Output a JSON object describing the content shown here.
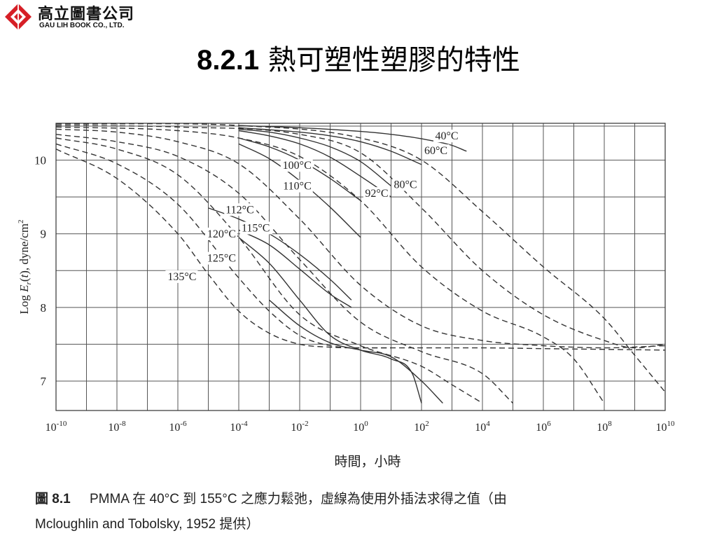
{
  "logo": {
    "name_cn": "高立圖書公司",
    "name_en": "GAU LIH BOOK CO., LTD.",
    "brand_color": "#d61f26"
  },
  "title": {
    "number": "8.2.1",
    "text": "熱可塑性塑膠的特性"
  },
  "chart_data": {
    "type": "line",
    "xlabel": "時間，小時",
    "ylabel": "Log E_r(t), dyne/cm^2",
    "xscale": "log10",
    "xlim": [
      1e-10,
      10000000000.0
    ],
    "ylim": [
      6.6,
      10.5
    ],
    "x_ticks": [
      "-10",
      "-8",
      "-6",
      "-4",
      "-2",
      "0",
      "2",
      "4",
      "6",
      "8",
      "10"
    ],
    "y_ticks": [
      "7",
      "8",
      "9",
      "10"
    ],
    "grid": true,
    "legend": "inline-labels",
    "series": [
      {
        "name": "40°C",
        "style": "solid",
        "x": [
          0.0001,
          0.01,
          1.0,
          10.0,
          100.0,
          1000.0,
          3000.0
        ],
        "y": [
          10.47,
          10.44,
          10.39,
          10.35,
          10.29,
          10.2,
          10.12
        ]
      },
      {
        "name": "60°C",
        "style": "solid",
        "x": [
          0.0001,
          0.01,
          0.1,
          1.0,
          10.0,
          100.0
        ],
        "y": [
          10.44,
          10.38,
          10.33,
          10.25,
          10.12,
          9.94
        ]
      },
      {
        "name": "80°C",
        "style": "solid",
        "x": [
          0.0001,
          0.001,
          0.01,
          0.1,
          1.0,
          10.0
        ],
        "y": [
          10.42,
          10.38,
          10.3,
          10.18,
          9.98,
          9.65
        ]
      },
      {
        "name": "92°C",
        "style": "solid",
        "x": [
          0.0001,
          0.001,
          0.01,
          0.1,
          1.0,
          10.0
        ],
        "y": [
          10.4,
          10.33,
          10.22,
          10.04,
          9.78,
          9.5
        ]
      },
      {
        "name": "100°C",
        "style": "solid",
        "x": [
          0.0001,
          0.001,
          0.01,
          0.1,
          1.0
        ],
        "y": [
          10.3,
          10.18,
          10.0,
          9.75,
          9.45
        ]
      },
      {
        "name": "110°C",
        "style": "solid",
        "x": [
          0.0001,
          0.001,
          0.01,
          0.1,
          1.0
        ],
        "y": [
          10.22,
          10.02,
          9.72,
          9.36,
          8.95
        ]
      },
      {
        "name": "112°C",
        "style": "solid",
        "x": [
          1e-05,
          0.0001,
          0.001,
          0.01,
          0.1,
          0.5
        ],
        "y": [
          9.35,
          9.2,
          9.0,
          8.72,
          8.38,
          8.1
        ]
      },
      {
        "name": "115°C",
        "style": "solid",
        "x": [
          0.0001,
          0.001,
          0.01,
          0.1,
          0.5
        ],
        "y": [
          9.05,
          8.85,
          8.52,
          8.18,
          8.0
        ]
      },
      {
        "name": "120°C",
        "style": "solid",
        "x": [
          0.0001,
          0.001,
          0.01,
          0.1,
          1.0,
          10.0,
          50.0,
          100.0
        ],
        "y": [
          8.95,
          8.6,
          8.1,
          7.62,
          7.42,
          7.3,
          7.1,
          6.7
        ]
      },
      {
        "name": "125°C",
        "style": "solid",
        "x": [
          0.001,
          0.01,
          0.1,
          1.0,
          10.0,
          100.0,
          500.0
        ],
        "y": [
          8.1,
          7.75,
          7.52,
          7.42,
          7.33,
          7.0,
          6.7
        ]
      },
      {
        "name": "135°C",
        "style": "dashed",
        "x": [
          1e-10,
          1e-08,
          1e-06,
          1e-05,
          0.0001,
          0.001,
          0.01,
          0.1,
          1.0,
          10.0
        ],
        "y": [
          10.15,
          9.75,
          9.0,
          8.45,
          7.95,
          7.65,
          7.5,
          7.46,
          7.45,
          7.45
        ]
      },
      {
        "name": "",
        "style": "dashed",
        "x": [
          1e-10,
          1e-08,
          1e-06,
          0.0001,
          0.001,
          0.01,
          0.1,
          1.0,
          10.0,
          100.0,
          10000.0,
          1000000.0,
          100000000.0,
          10000000000.0
        ],
        "y": [
          10.22,
          9.95,
          9.4,
          8.4,
          7.95,
          7.62,
          7.48,
          7.45,
          7.45,
          7.45,
          7.45,
          7.44,
          7.43,
          7.42
        ]
      },
      {
        "name": "",
        "style": "dashed",
        "x": [
          1e-10,
          1e-08,
          1e-06,
          0.0001,
          0.01,
          1.0,
          100.0,
          1000.0,
          10000.0
        ],
        "y": [
          10.3,
          10.15,
          9.8,
          8.95,
          7.9,
          7.48,
          7.2,
          6.95,
          6.7
        ]
      },
      {
        "name": "",
        "style": "dashed",
        "x": [
          1e-10,
          1e-08,
          1e-06,
          0.0001,
          0.01,
          1.0,
          100.0,
          10000.0,
          100000.0
        ],
        "y": [
          10.35,
          10.25,
          10.05,
          9.55,
          8.65,
          7.8,
          7.4,
          7.1,
          6.7
        ]
      },
      {
        "name": "",
        "style": "dashed",
        "x": [
          1e-10,
          1e-08,
          1e-06,
          0.0001,
          0.01,
          1.0,
          100.0,
          10000.0,
          1000000.0,
          10000000.0,
          100000000.0,
          10000000000.0
        ],
        "y": [
          10.42,
          10.38,
          10.25,
          9.95,
          9.2,
          8.3,
          7.75,
          7.55,
          7.48,
          7.46,
          7.45,
          7.48
        ]
      },
      {
        "name": "",
        "style": "dashed",
        "x": [
          1e-10,
          1e-06,
          0.0001,
          0.01,
          1.0,
          100.0,
          10000.0,
          1000000.0,
          10000000.0,
          100000000.0
        ],
        "y": [
          10.45,
          10.4,
          10.3,
          10.05,
          9.45,
          8.55,
          7.95,
          7.6,
          7.3,
          6.7
        ]
      },
      {
        "name": "",
        "style": "dashed",
        "x": [
          1e-10,
          1e-06,
          0.01,
          1.0,
          100.0,
          10000.0,
          1000000.0,
          100000000.0,
          1000000000.0,
          10000000000.0
        ],
        "y": [
          10.47,
          10.45,
          10.35,
          10.1,
          9.35,
          8.5,
          7.9,
          7.55,
          7.45,
          7.5
        ]
      },
      {
        "name": "",
        "style": "dashed",
        "x": [
          1e-10,
          0.0001,
          1.0,
          100.0,
          10000.0,
          1000000.0,
          100000000.0,
          1000000000.0,
          10000000000.0
        ],
        "y": [
          10.49,
          10.47,
          10.3,
          10.0,
          9.3,
          8.55,
          7.85,
          7.35,
          6.85
        ]
      }
    ]
  },
  "caption": {
    "fig_label": "圖",
    "fig_number": "8.1",
    "line1": "PMMA 在 40°C 到 155°C 之應力鬆弛，虛線為使用外插法求得之值（由",
    "line2": "Mcloughlin and Tobolsky, 1952 提供）"
  }
}
